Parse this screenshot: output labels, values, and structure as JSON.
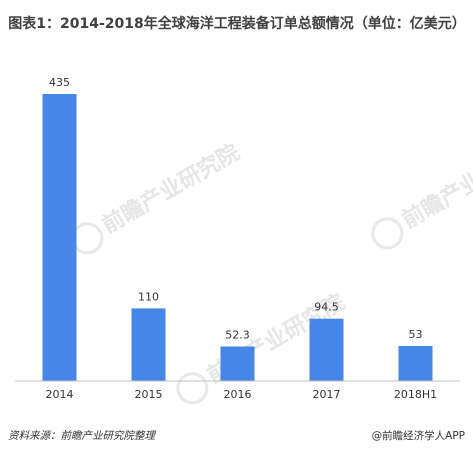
{
  "title": "图表1：2014-2018年全球海洋工程装备订单总额情况（单位：亿美元）",
  "footer": {
    "source": "资料来源：前瞻产业研究院整理",
    "brand": "@前瞻经济学人APP"
  },
  "watermark": {
    "text": "前瞻产业研究院"
  },
  "colors": {
    "bar": "#4586e6",
    "axis": "#bfbfbf",
    "label": "#333333"
  },
  "chart_data": {
    "type": "bar",
    "title": "图表1：2014-2018年全球海洋工程装备订单总额情况（单位：亿美元）",
    "xlabel": "",
    "ylabel": "",
    "categories": [
      "2014",
      "2015",
      "2016",
      "2017",
      "2018H1"
    ],
    "values": [
      435,
      110,
      52.3,
      94.5,
      53
    ],
    "data_labels": [
      "435",
      "110",
      "52.3",
      "94.5",
      "53"
    ],
    "ylim": [
      0,
      435
    ],
    "grid": false,
    "legend": "none"
  }
}
